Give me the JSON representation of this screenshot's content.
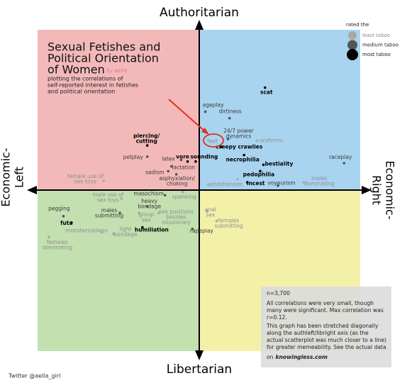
{
  "chart_data": {
    "type": "scatter",
    "title": [
      "Sexual Fetishes and",
      "Political Orientation",
      "of Women"
    ],
    "byline": "by aella",
    "subtitle": [
      "plotting the correlations of",
      "self-reported interest in fetishes",
      "and political orientation"
    ],
    "axis_top": "Authoritarian",
    "axis_bottom": "Libertarian",
    "axis_left": [
      "Economic-",
      "Left"
    ],
    "axis_right": [
      "Economic-",
      "Right"
    ],
    "xlim": [
      -10,
      10
    ],
    "ylim": [
      -10,
      10
    ],
    "quadrant_colors": [
      "#f3b9b9",
      "#a9d4f0",
      "#c3e0b0",
      "#f3f1a8"
    ],
    "legend_title": "rated the",
    "series": [
      {
        "name": "least taboo",
        "color": "#a8a8a8",
        "text_color": "#8e8e8e",
        "labels": [
          [
            "uniforms"
          ],
          [
            "feet"
          ],
          [
            "males",
            "dominating"
          ],
          [
            "exhibitionism"
          ],
          [
            "female use of",
            "sex toys"
          ],
          [
            "male use of",
            "sex toys"
          ],
          [
            "spanking"
          ],
          [
            "group",
            "sex"
          ],
          [
            "sex positions",
            "besides",
            "missionary"
          ],
          [
            "anal",
            "sex"
          ],
          [
            "females",
            "submitting"
          ],
          [
            "monsters/aliens"
          ],
          [
            "light",
            "bondage"
          ],
          [
            "females",
            "dominating"
          ]
        ],
        "x": [
          3.6,
          1.1,
          6.5,
          2.4,
          -5.9,
          -4.8,
          -1.0,
          -3.7,
          -2.5,
          0.5,
          1.1,
          -6.0,
          -5.3,
          -9.3
        ],
        "values": [
          3.1,
          2.7,
          0.5,
          0.7,
          0.6,
          -0.5,
          -0.1,
          -1.4,
          -1.4,
          -1.3,
          -1.9,
          -2.6,
          -2.7,
          -2.9
        ]
      },
      {
        "name": "medium taboo",
        "color": "#555555",
        "text_color": "#3a3a3a",
        "labels": [
          [
            "ageplay"
          ],
          [
            "dirtiness"
          ],
          [
            "24/7 power",
            "dynamics"
          ],
          [
            "raceplay"
          ],
          [
            "voyeurism"
          ],
          [
            "petplay"
          ],
          [
            "latex"
          ],
          [
            "lactation"
          ],
          [
            "sadism"
          ],
          [
            "asphyxiation/",
            "choking"
          ],
          [
            "masochism"
          ],
          [
            "heavy",
            "bondage"
          ],
          [
            "males",
            "submitting"
          ],
          [
            "pegging"
          ],
          [
            "rapeplay"
          ]
        ],
        "x": [
          0.4,
          1.9,
          1.8,
          9.0,
          4.9,
          -3.2,
          -1.1,
          -1.7,
          -1.9,
          -1.4,
          -2.1,
          -3.2,
          -4.9,
          -8.4,
          -0.4
        ],
        "values": [
          4.9,
          4.5,
          3.2,
          1.7,
          0.3,
          2.1,
          1.9,
          1.5,
          1.2,
          1.0,
          -0.3,
          -1.0,
          -1.4,
          -1.6,
          -2.4
        ]
      },
      {
        "name": "most taboo",
        "color": "#000000",
        "text_color": "#000000",
        "labels": [
          [
            "scat"
          ],
          [
            "creepy crawlies"
          ],
          [
            "necrophilia"
          ],
          [
            "bestiality"
          ],
          [
            "pedophilia"
          ],
          [
            "incest"
          ],
          [
            "piercing/",
            "cutting"
          ],
          [
            "vore"
          ],
          [
            "sounding"
          ],
          [
            "futa"
          ],
          [
            "humiliation"
          ]
        ],
        "x": [
          4.1,
          1.4,
          2.8,
          4.0,
          3.8,
          3.0,
          -3.2,
          -0.7,
          -0.2,
          -7.9,
          -3.5
        ],
        "values": [
          6.4,
          2.7,
          2.2,
          1.6,
          1.2,
          0.5,
          2.8,
          1.8,
          1.8,
          -2.0,
          -2.3
        ]
      }
    ],
    "note": [
      "n=3,700",
      "All correlations were very small, though",
      "many were significant. Max correlation was",
      "r=0.12.",
      "This graph has been stretched diagonally",
      "along the authleft/libright axis (as the",
      "actual scatterplot was much closer to a line)",
      "for greater memeability. See the actual data",
      "on"
    ],
    "note_link": "knowingless.com",
    "footer": "Twitter @aella_girl"
  }
}
